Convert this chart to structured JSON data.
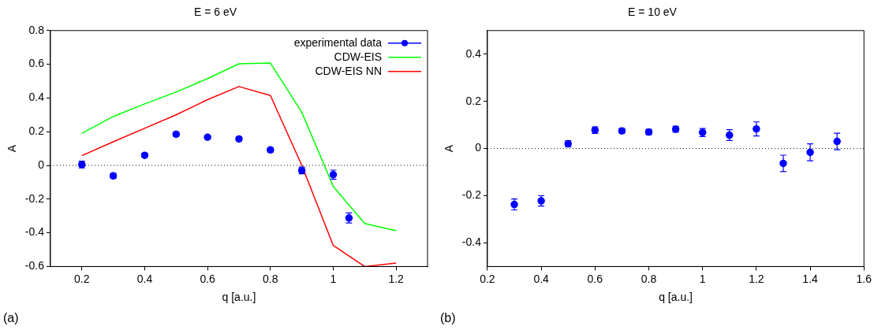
{
  "chart_data": [
    {
      "type": "line",
      "title": "E = 6 eV",
      "xlabel": "q [a.u.]",
      "ylabel": "A",
      "annotations": [
        "(a)"
      ],
      "xlim": [
        0.1,
        1.3
      ],
      "xticks": [
        0.2,
        0.4,
        0.6,
        0.8,
        1,
        1.2
      ],
      "ylim": [
        -0.6,
        0.8
      ],
      "yticks": [
        -0.6,
        -0.4,
        -0.2,
        0,
        0.2,
        0.4,
        0.6,
        0.8
      ],
      "grid": false,
      "legend": "top right",
      "ref_lines": [
        {
          "axis": "y",
          "value": 0,
          "color": "#000000",
          "line_style": "dotted"
        }
      ],
      "series": [
        {
          "name": "experimental data",
          "type": "scatter",
          "marker": "circle",
          "color": "#0000ff",
          "x": [
            0.2,
            0.3,
            0.4,
            0.5,
            0.6,
            0.7,
            0.8,
            0.9,
            1.0,
            1.05
          ],
          "values": [
            0.005,
            -0.062,
            0.06,
            0.185,
            0.167,
            0.157,
            0.092,
            -0.03,
            -0.055,
            -0.312
          ],
          "errors": [
            0.02,
            0.015,
            0.012,
            0.012,
            0.01,
            0.012,
            0.013,
            0.02,
            0.027,
            0.03
          ]
        },
        {
          "name": "CDW-EIS",
          "marker": "none",
          "color": "#00ff00",
          "x": [
            0.2,
            0.3,
            0.4,
            0.5,
            0.6,
            0.7,
            0.8,
            0.9,
            1.0,
            1.1,
            1.2
          ],
          "values": [
            0.19,
            0.29,
            0.365,
            0.435,
            0.515,
            0.603,
            0.607,
            0.315,
            -0.125,
            -0.345,
            -0.388
          ]
        },
        {
          "name": "CDW-EIS NN",
          "marker": "none",
          "color": "#ff0000",
          "x": [
            0.2,
            0.3,
            0.4,
            0.5,
            0.6,
            0.7,
            0.8,
            0.9,
            1.0,
            1.1,
            1.2
          ],
          "values": [
            0.058,
            0.14,
            0.22,
            0.3,
            0.39,
            0.468,
            0.415,
            0.0,
            -0.475,
            -0.6,
            -0.58
          ]
        }
      ]
    },
    {
      "type": "scatter",
      "title": "E = 10 eV",
      "xlabel": "q [a.u.]",
      "ylabel": "A",
      "annotations": [
        "(b)"
      ],
      "xlim": [
        0.2,
        1.6
      ],
      "xticks": [
        0.2,
        0.4,
        0.6,
        0.8,
        1,
        1.2,
        1.4,
        1.6
      ],
      "ylim": [
        -0.5,
        0.5
      ],
      "yticks": [
        -0.4,
        -0.2,
        0,
        0.2,
        0.4
      ],
      "grid": false,
      "ref_lines": [
        {
          "axis": "y",
          "value": 0,
          "color": "#000000",
          "line_style": "dotted"
        }
      ],
      "series": [
        {
          "marker": "circle",
          "color": "#0000ff",
          "x": [
            0.3,
            0.4,
            0.5,
            0.6,
            0.7,
            0.8,
            0.9,
            1.0,
            1.1,
            1.2,
            1.3,
            1.4,
            1.5
          ],
          "values": [
            -0.237,
            -0.222,
            0.02,
            0.078,
            0.075,
            0.07,
            0.082,
            0.068,
            0.057,
            0.083,
            -0.063,
            -0.016,
            0.03
          ],
          "errors": [
            0.023,
            0.022,
            0.013,
            0.014,
            0.01,
            0.012,
            0.012,
            0.017,
            0.023,
            0.03,
            0.035,
            0.036,
            0.035
          ]
        }
      ]
    }
  ]
}
